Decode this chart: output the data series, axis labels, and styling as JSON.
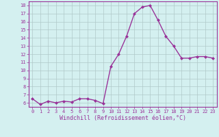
{
  "x": [
    0,
    1,
    2,
    3,
    4,
    5,
    6,
    7,
    8,
    9,
    10,
    11,
    12,
    13,
    14,
    15,
    16,
    17,
    18,
    19,
    20,
    21,
    22,
    23
  ],
  "y": [
    6.5,
    5.8,
    6.2,
    6.0,
    6.2,
    6.1,
    6.5,
    6.5,
    6.3,
    5.9,
    10.5,
    12.0,
    14.2,
    17.0,
    17.8,
    18.0,
    16.2,
    14.2,
    13.0,
    11.5,
    11.5,
    11.7,
    11.7,
    11.5
  ],
  "line_color": "#993399",
  "marker": "D",
  "marker_size": 2,
  "line_width": 1.0,
  "bg_color": "#d4f0f0",
  "grid_color": "#b0c8c8",
  "xlabel": "Windchill (Refroidissement éolien,°C)",
  "xlabel_color": "#993399",
  "ylabel_ticks": [
    6,
    7,
    8,
    9,
    10,
    11,
    12,
    13,
    14,
    15,
    16,
    17,
    18
  ],
  "ylim": [
    5.5,
    18.5
  ],
  "xlim": [
    -0.5,
    23.5
  ],
  "tick_color": "#993399",
  "xtick_fontsize": 5.0,
  "ytick_fontsize": 5.0,
  "xlabel_fontsize": 6.0
}
